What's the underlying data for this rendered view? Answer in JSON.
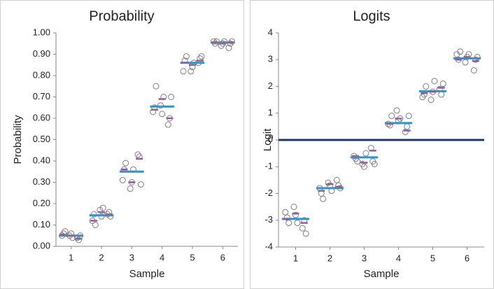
{
  "chart_data": [
    {
      "type": "dot",
      "title": "Probability",
      "xlabel": "Sample",
      "ylabel": "Probability",
      "xlim": [
        0.5,
        6.5
      ],
      "xticks": [
        1,
        2,
        3,
        4,
        5,
        6
      ],
      "ylim": [
        0,
        1
      ],
      "yticks": [
        {
          "value": 0,
          "label": "0.00"
        },
        {
          "value": 0.1,
          "label": "0.10"
        },
        {
          "value": 0.2,
          "label": "0.20"
        },
        {
          "value": 0.3,
          "label": "0.30"
        },
        {
          "value": 0.4,
          "label": "0.40"
        },
        {
          "value": 0.5,
          "label": "0.50"
        },
        {
          "value": 0.6,
          "label": "0.60"
        },
        {
          "value": 0.7,
          "label": "0.70"
        },
        {
          "value": 0.8,
          "label": "0.80"
        },
        {
          "value": 0.9,
          "label": "0.90"
        },
        {
          "value": 1,
          "label": "1.00"
        }
      ],
      "series": [
        {
          "marker": "circle",
          "color": "#7f7f7f",
          "x": [
            0.7,
            0.75,
            0.8,
            0.95,
            1.0,
            1.05,
            1.2,
            1.25,
            1.3,
            1.7,
            1.75,
            1.8,
            1.95,
            2.0,
            2.05,
            2.2,
            2.25,
            2.3,
            2.7,
            2.75,
            2.8,
            2.95,
            3.0,
            3.05,
            3.2,
            3.25,
            3.3,
            3.7,
            3.75,
            3.8,
            3.95,
            4.0,
            4.05,
            4.2,
            4.25,
            4.3,
            4.7,
            4.75,
            4.8,
            4.95,
            5.0,
            5.05,
            5.2,
            5.25,
            5.3,
            5.7,
            5.75,
            5.8,
            5.95,
            6.0,
            6.05,
            6.2,
            6.25,
            6.3
          ],
          "values": [
            0.05,
            0.06,
            0.07,
            0.05,
            0.06,
            0.04,
            0.04,
            0.03,
            0.05,
            0.12,
            0.15,
            0.1,
            0.17,
            0.14,
            0.18,
            0.15,
            0.16,
            0.14,
            0.31,
            0.36,
            0.39,
            0.27,
            0.3,
            0.36,
            0.43,
            0.42,
            0.29,
            0.63,
            0.65,
            0.75,
            0.66,
            0.62,
            0.7,
            0.57,
            0.6,
            0.7,
            0.82,
            0.87,
            0.89,
            0.82,
            0.84,
            0.86,
            0.86,
            0.88,
            0.89,
            0.96,
            0.95,
            0.96,
            0.94,
            0.95,
            0.96,
            0.93,
            0.95,
            0.96
          ]
        },
        {
          "marker": "dash",
          "color": "#9b4fa8",
          "x": [
            0.75,
            1.0,
            1.25,
            1.75,
            2.0,
            2.25,
            2.75,
            3.0,
            3.25,
            3.75,
            4.0,
            4.25,
            4.75,
            5.0,
            5.25,
            5.75,
            6.0,
            6.25
          ],
          "values": [
            0.055,
            0.05,
            0.035,
            0.12,
            0.16,
            0.15,
            0.36,
            0.3,
            0.41,
            0.64,
            0.69,
            0.6,
            0.86,
            0.85,
            0.87,
            0.955,
            0.95,
            0.955
          ]
        },
        {
          "marker": "bar-line",
          "color": "#1f9ad6",
          "x": [
            1,
            2,
            3,
            4,
            5,
            6
          ],
          "values": [
            0.05,
            0.145,
            0.35,
            0.655,
            0.86,
            0.955
          ]
        }
      ]
    },
    {
      "type": "dot",
      "title": "Logits",
      "xlabel": "Sample",
      "ylabel": "Logit",
      "xlim": [
        0.5,
        6.5
      ],
      "xticks": [
        1,
        2,
        3,
        4,
        5,
        6
      ],
      "ylim": [
        -4,
        4
      ],
      "yticks": [
        -4,
        -3,
        -2,
        -1,
        0,
        1,
        2,
        3,
        4
      ],
      "hline": 0,
      "hline_color": "#1f3864",
      "series": [
        {
          "marker": "circle",
          "color": "#7f7f7f",
          "x": [
            0.7,
            0.75,
            0.8,
            0.95,
            1.0,
            1.05,
            1.2,
            1.25,
            1.3,
            1.7,
            1.75,
            1.8,
            1.95,
            2.0,
            2.05,
            2.2,
            2.25,
            2.3,
            2.7,
            2.75,
            2.8,
            2.95,
            3.0,
            3.05,
            3.2,
            3.25,
            3.3,
            3.7,
            3.75,
            3.8,
            3.95,
            4.0,
            4.05,
            4.2,
            4.25,
            4.3,
            4.7,
            4.75,
            4.8,
            4.95,
            5.0,
            5.05,
            5.2,
            5.25,
            5.3,
            5.7,
            5.75,
            5.8,
            5.95,
            6.0,
            6.05,
            6.2,
            6.25,
            6.3
          ],
          "values": [
            -2.7,
            -2.9,
            -3.1,
            -2.5,
            -2.8,
            -3.1,
            -3.3,
            -3.0,
            -3.5,
            -1.8,
            -2.0,
            -2.2,
            -1.6,
            -1.7,
            -1.9,
            -1.5,
            -1.7,
            -1.8,
            -0.6,
            -0.7,
            -0.8,
            -0.9,
            -1.0,
            -0.5,
            -0.3,
            -0.8,
            -0.9,
            0.6,
            0.55,
            0.9,
            1.1,
            0.7,
            0.8,
            0.3,
            0.5,
            0.9,
            1.6,
            1.7,
            2.0,
            1.5,
            1.8,
            2.2,
            1.9,
            1.7,
            2.1,
            3.2,
            3.0,
            3.3,
            2.9,
            3.1,
            3.2,
            2.6,
            3.0,
            3.1
          ]
        },
        {
          "marker": "dash",
          "color": "#9b4fa8",
          "x": [
            0.75,
            1.0,
            1.25,
            1.75,
            2.0,
            2.25,
            2.75,
            3.0,
            3.25,
            3.75,
            4.0,
            4.25,
            4.75,
            5.0,
            5.25,
            5.75,
            6.0,
            6.25
          ],
          "values": [
            -2.95,
            -2.75,
            -3.1,
            -1.9,
            -1.65,
            -1.75,
            -0.6,
            -0.85,
            -0.4,
            0.6,
            0.8,
            0.35,
            1.75,
            1.8,
            1.95,
            3.0,
            3.1,
            2.95
          ]
        },
        {
          "marker": "bar-line",
          "color": "#1f9ad6",
          "x": [
            1,
            2,
            3,
            4,
            5,
            6
          ],
          "values": [
            -2.95,
            -1.8,
            -0.65,
            0.63,
            1.82,
            3.05
          ]
        }
      ]
    }
  ]
}
